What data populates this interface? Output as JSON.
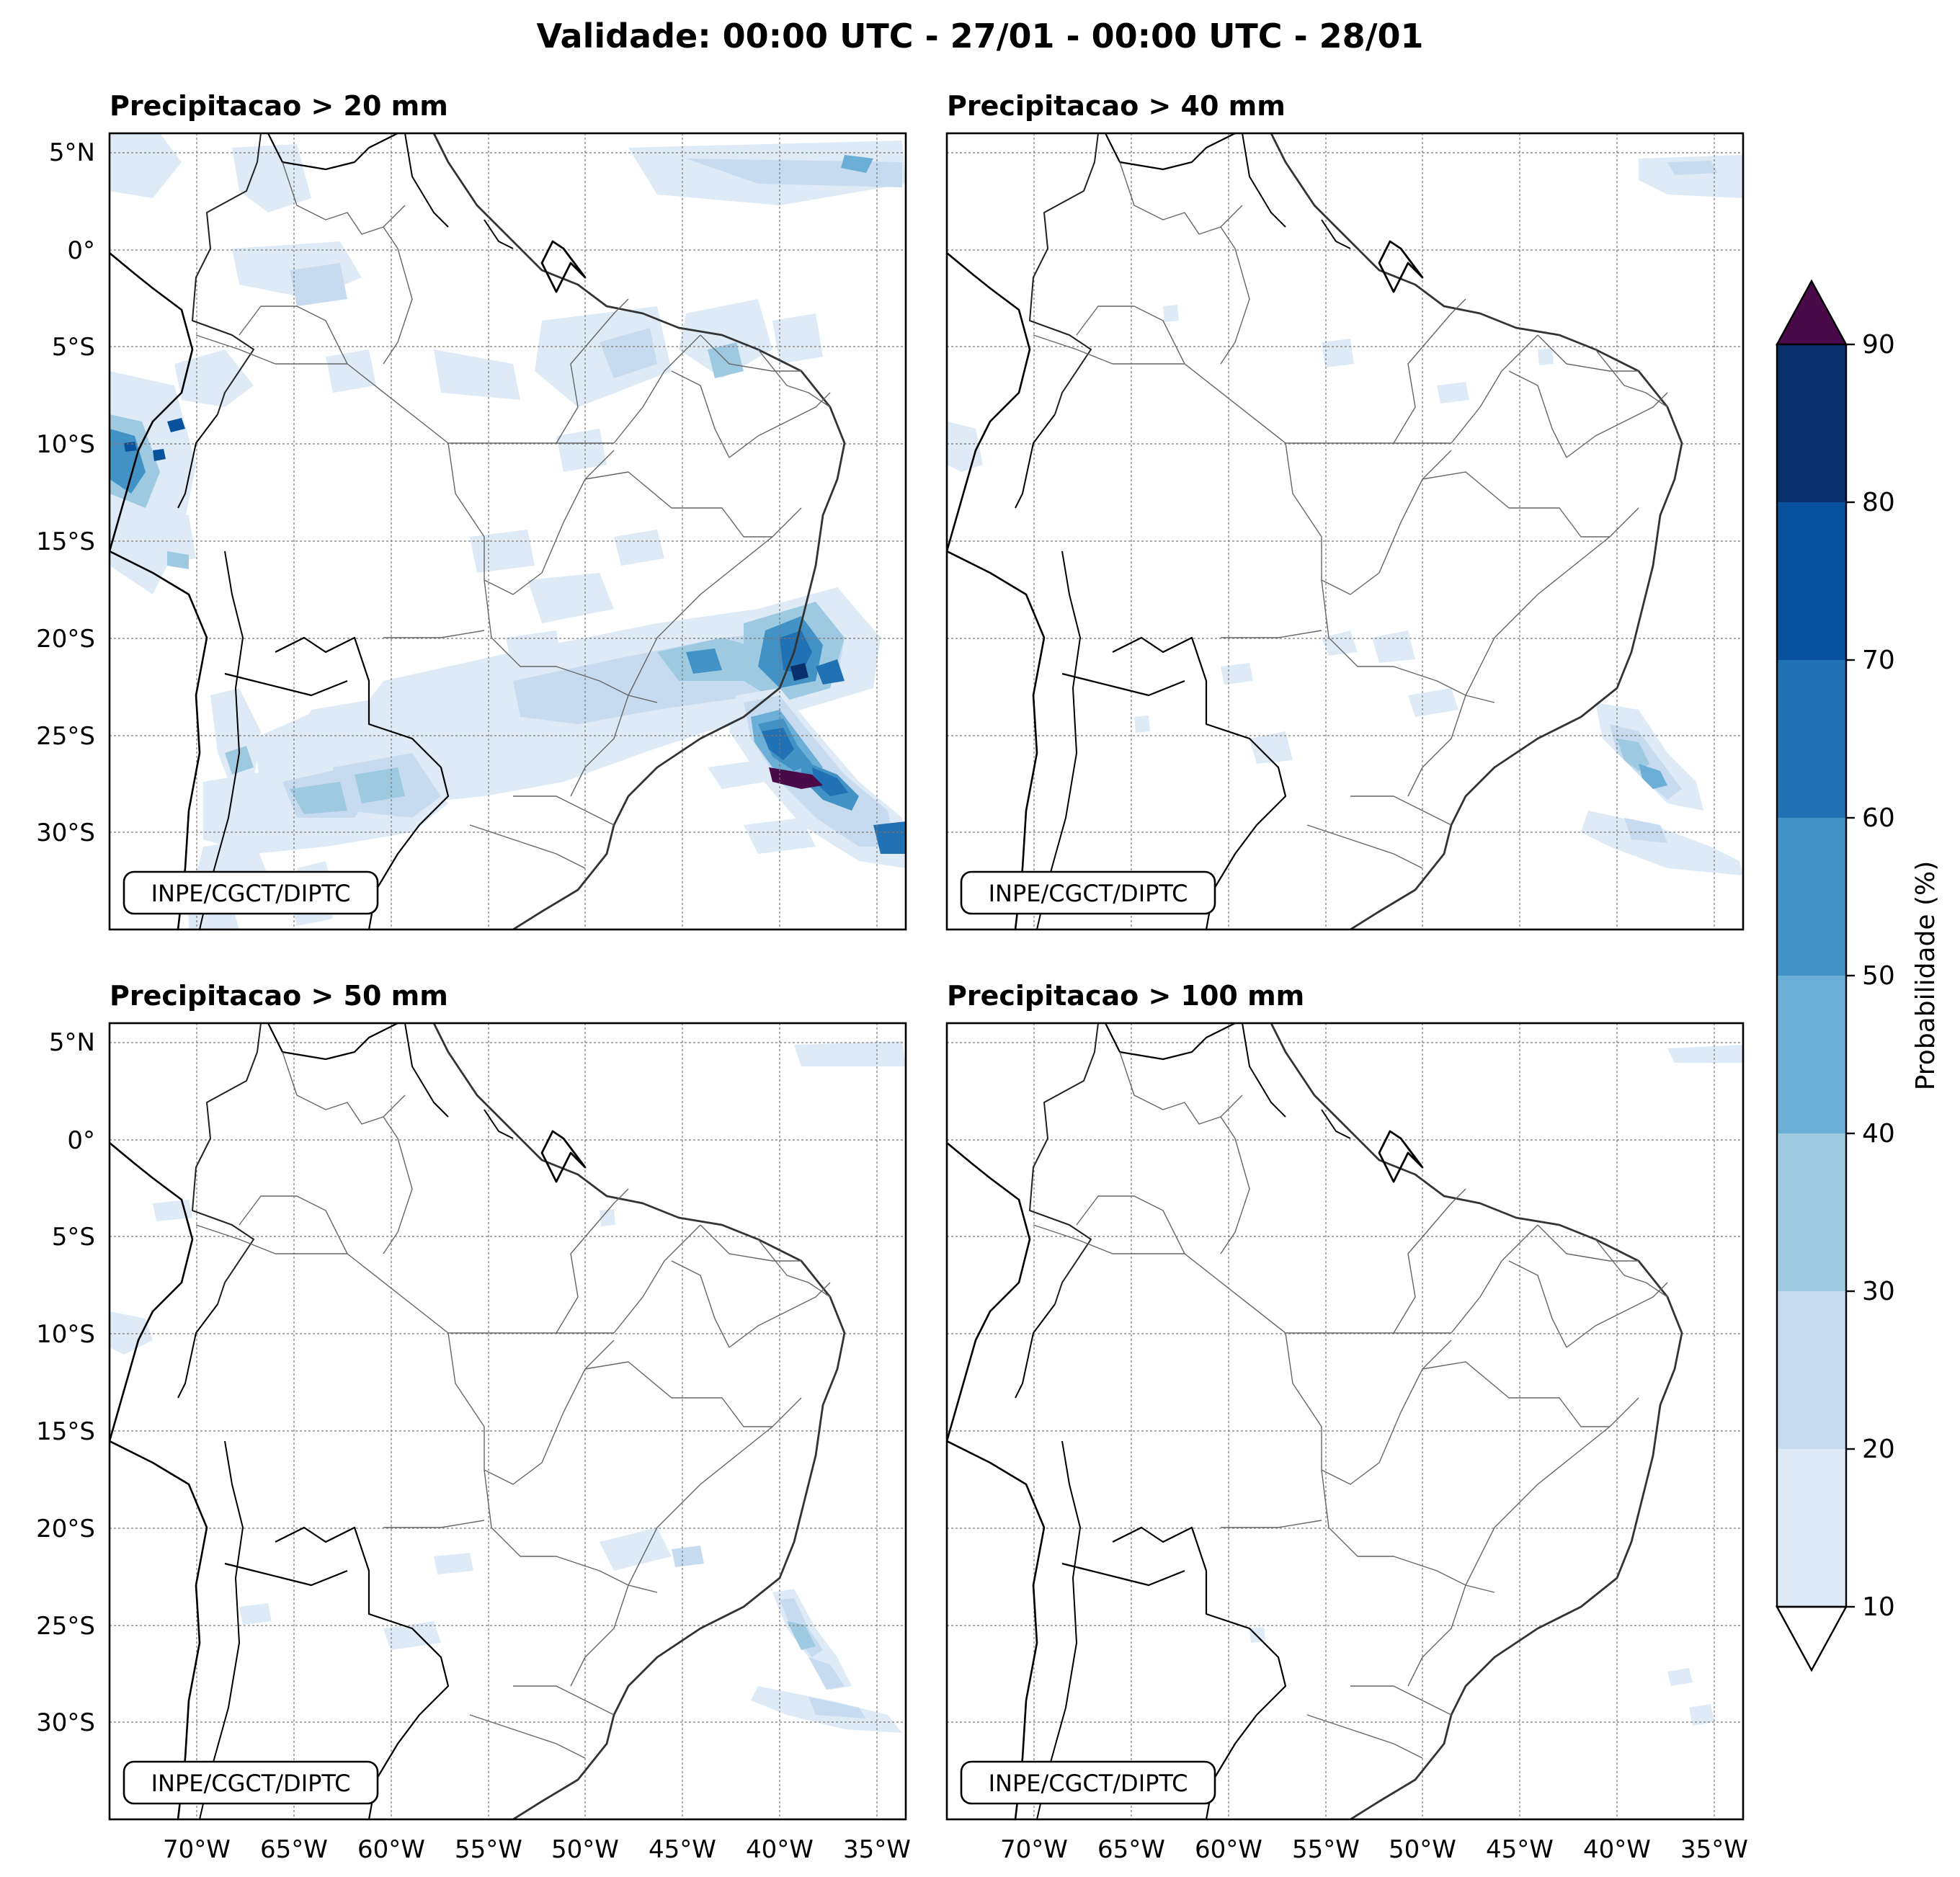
{
  "title": "Validade: 00:00 UTC - 27/01 - 00:00 UTC - 28/01",
  "panels": [
    {
      "title": "Precipitacao > 20 mm",
      "credit": "INPE/CGCT/DIPTC"
    },
    {
      "title": "Precipitacao > 40 mm",
      "credit": "INPE/CGCT/DIPTC"
    },
    {
      "title": "Precipitacao > 50 mm",
      "credit": "INPE/CGCT/DIPTC"
    },
    {
      "title": "Precipitacao > 100 mm",
      "credit": "INPE/CGCT/DIPTC"
    }
  ],
  "axes": {
    "lon_range": [
      -75,
      -34
    ],
    "lat_range": [
      -35,
      6
    ],
    "lon_ticks": [
      "70°W",
      "65°W",
      "60°W",
      "55°W",
      "50°W",
      "45°W",
      "40°W",
      "35°W"
    ],
    "lat_ticks": [
      "5°N",
      "0°",
      "5°S",
      "10°S",
      "15°S",
      "20°S",
      "25°S",
      "30°S"
    ],
    "grid": true
  },
  "colorbar": {
    "label": "Probabilidade (%)",
    "ticks": [
      "10",
      "20",
      "30",
      "40",
      "50",
      "60",
      "70",
      "80",
      "90"
    ],
    "colors": [
      "#deebf7",
      "#c6dbef",
      "#9ecae1",
      "#6baed6",
      "#4292c6",
      "#2171b5",
      "#08519c",
      "#08306b"
    ],
    "over_color": "#4a0a4a",
    "under_color": "#ffffff"
  }
}
